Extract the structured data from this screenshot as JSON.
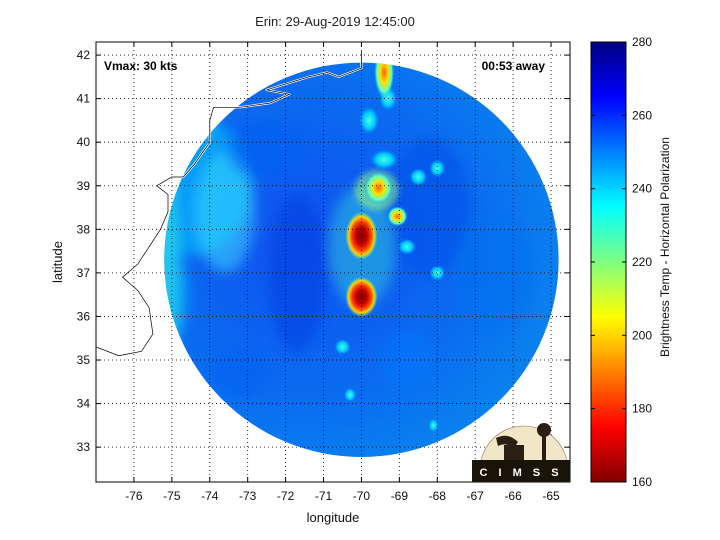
{
  "title": "Erin: 29-Aug-2019 12:45:00",
  "vmax_label": "Vmax: 30 kts",
  "time_away_label": "00:53 away",
  "logo_text": "C I M S S",
  "chart_data": {
    "type": "heatmap",
    "xlabel": "longitude",
    "ylabel": "latitude",
    "xlim": [
      -77,
      -64.5
    ],
    "ylim": [
      32.2,
      42.3
    ],
    "x_ticks": [
      -76,
      -75,
      -74,
      -73,
      -72,
      -71,
      -70,
      -69,
      -68,
      -67,
      -66,
      -65
    ],
    "y_ticks": [
      33,
      34,
      35,
      36,
      37,
      38,
      39,
      40,
      41,
      42
    ],
    "grid": true,
    "swath_center": [
      -70.0,
      37.3
    ],
    "swath_radius_deg": 5.2,
    "colorbar": {
      "label": "Brightness Temp - Horizontal Polarization",
      "min": 160,
      "max": 280,
      "ticks": [
        160,
        180,
        200,
        220,
        240,
        260,
        280
      ],
      "colormap": [
        "#800000",
        "#ff0000",
        "#ff8000",
        "#ffff00",
        "#80ff80",
        "#00ffff",
        "#0080ff",
        "#0000ff",
        "#000080"
      ]
    },
    "features": [
      {
        "name": "cold-core-north",
        "lon": -70.0,
        "lat": 37.85,
        "value": 165
      },
      {
        "name": "cold-core-south",
        "lon": -70.0,
        "lat": 36.45,
        "value": 168
      },
      {
        "name": "cold-band-39",
        "lon": -69.55,
        "lat": 38.95,
        "value": 185
      },
      {
        "name": "cold-band-north",
        "lon": -69.4,
        "lat": 41.6,
        "value": 190
      },
      {
        "name": "cell-383",
        "lon": -69.05,
        "lat": 38.3,
        "value": 200
      }
    ]
  }
}
